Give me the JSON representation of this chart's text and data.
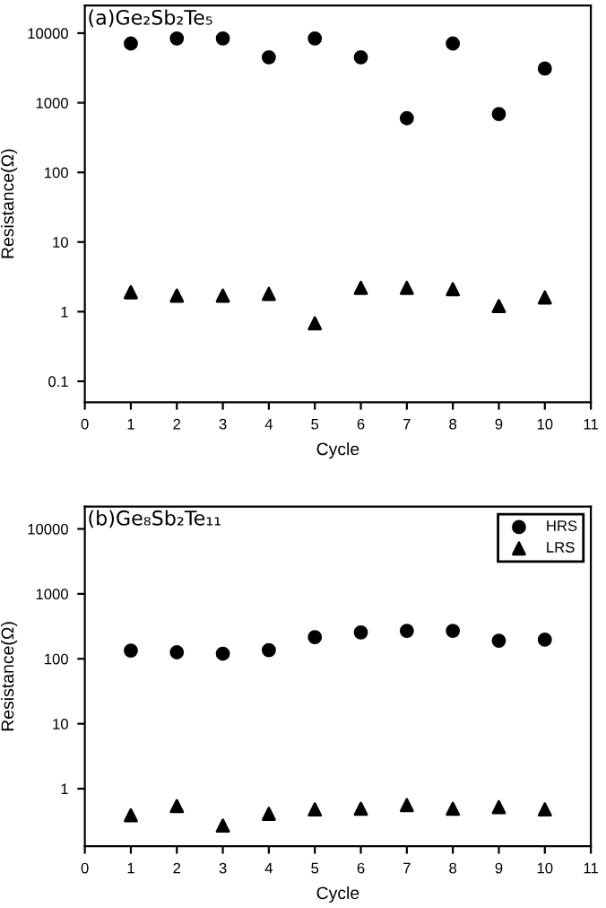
{
  "chart_data": [
    {
      "type": "scatter",
      "title": "(a)Ge₂Sb₂Te₅",
      "xlabel": "Cycle",
      "ylabel": "Resistance(Ω)",
      "log": "y",
      "x": [
        1,
        2,
        3,
        4,
        5,
        6,
        7,
        8,
        9,
        10
      ],
      "series": [
        {
          "color": "#000000",
          "marker": "circle",
          "values": [
            7100,
            8400,
            8400,
            4500,
            8400,
            4500,
            600,
            7100,
            690,
            3100
          ]
        },
        {
          "color": "#000000",
          "marker": "triangle",
          "values": [
            1.9,
            1.7,
            1.7,
            1.8,
            0.68,
            2.2,
            2.2,
            2.1,
            1.2,
            1.6
          ]
        }
      ],
      "xlim": [
        0,
        11
      ],
      "xticks": [
        0,
        1,
        2,
        3,
        4,
        5,
        6,
        7,
        8,
        9,
        10,
        11
      ],
      "ylim": [
        0.05,
        25000
      ],
      "yticks": [
        0.1,
        1,
        10,
        100,
        1000,
        10000
      ],
      "grid": false,
      "legend": false
    },
    {
      "type": "scatter",
      "title": "(b)Ge₈Sb₂Te₁₁",
      "xlabel": "Cycle",
      "ylabel": "Resistance(Ω)",
      "log": "y",
      "x": [
        1,
        2,
        3,
        4,
        5,
        6,
        7,
        8,
        9,
        10
      ],
      "series": [
        {
          "name": "HRS",
          "color": "#000000",
          "marker": "circle",
          "values": [
            134,
            126,
            120,
            136,
            215,
            255,
            270,
            270,
            190,
            197
          ]
        },
        {
          "name": "LRS",
          "color": "#000000",
          "marker": "triangle",
          "values": [
            0.39,
            0.54,
            0.27,
            0.41,
            0.48,
            0.49,
            0.56,
            0.49,
            0.52,
            0.48
          ]
        }
      ],
      "xlim": [
        0,
        11
      ],
      "xticks": [
        0,
        1,
        2,
        3,
        4,
        5,
        6,
        7,
        8,
        9,
        10,
        11
      ],
      "ylim": [
        0.13,
        22000
      ],
      "yticks": [
        1,
        10,
        100,
        1000,
        10000
      ],
      "grid": false,
      "legend": "top right"
    }
  ]
}
